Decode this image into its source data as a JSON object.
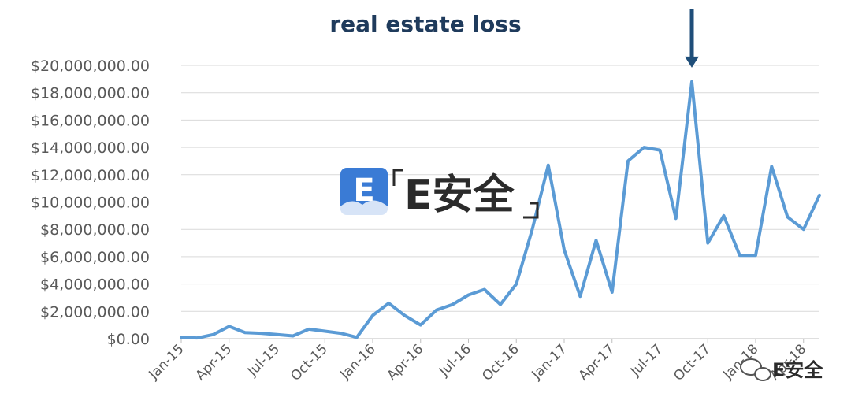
{
  "chart_data": {
    "type": "line",
    "title": "real estate loss",
    "xlabel": "",
    "ylabel": "",
    "ylim": [
      0,
      20000000
    ],
    "yticks": [
      "$0.00",
      "$2,000,000.00",
      "$4,000,000.00",
      "$6,000,000.00",
      "$8,000,000.00",
      "$10,000,000.00",
      "$12,000,000.00",
      "$14,000,000.00",
      "$16,000,000.00",
      "$18,000,000.00",
      "$20,000,000.00"
    ],
    "xtick_labels": [
      {
        "index": 0,
        "label": "Jan-15"
      },
      {
        "index": 3,
        "label": "Apr-15"
      },
      {
        "index": 6,
        "label": "Jul-15"
      },
      {
        "index": 9,
        "label": "Oct-15"
      },
      {
        "index": 12,
        "label": "Jan-16"
      },
      {
        "index": 15,
        "label": "Apr-16"
      },
      {
        "index": 18,
        "label": "Jul-16"
      },
      {
        "index": 21,
        "label": "Oct-16"
      },
      {
        "index": 24,
        "label": "Jan-17"
      },
      {
        "index": 27,
        "label": "Apr-17"
      },
      {
        "index": 30,
        "label": "Jul-17"
      },
      {
        "index": 33,
        "label": "Oct-17"
      },
      {
        "index": 36,
        "label": "Jan-18"
      },
      {
        "index": 39,
        "label": "Apr-18"
      }
    ],
    "grid": true,
    "legend": "none",
    "series": [
      {
        "values": [
          100000,
          50000,
          300000,
          900000,
          450000,
          400000,
          300000,
          200000,
          700000,
          550000,
          400000,
          100000,
          1700000,
          2600000,
          1700000,
          1000000,
          2100000,
          2500000,
          3200000,
          3600000,
          2500000,
          4000000,
          8000000,
          12700000,
          6500000,
          3100000,
          7200000,
          3400000,
          13000000,
          14000000,
          13800000,
          8800000,
          18800000,
          7000000,
          9000000,
          6100000,
          6100000,
          12600000,
          8900000,
          8000000,
          10500000
        ],
        "color": "#5b9bd5"
      }
    ],
    "annotations": [
      {
        "type": "arrow",
        "index": 32,
        "direction": "down",
        "color": "#1f4e79"
      }
    ]
  },
  "watermark": {
    "logo_letter": "E",
    "logo_text": "E安全",
    "corner_text": "E安全",
    "colors": {
      "logo": "#3a7bd5",
      "text": "#2b2b2b"
    }
  }
}
